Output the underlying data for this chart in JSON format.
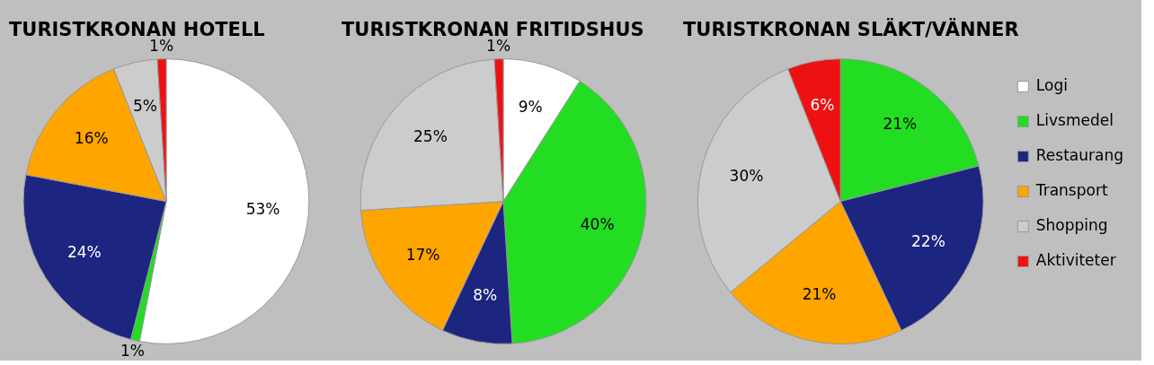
{
  "chart_data": [
    {
      "type": "pie",
      "title": "TURISTKRONAN HOTELL",
      "categories": [
        null,
        null,
        null,
        null,
        null,
        null
      ],
      "values": [
        53,
        1,
        24,
        16,
        5,
        1
      ],
      "colors": [
        "#ffffff",
        "#22dd22",
        "#1c2580",
        "#ffa500",
        "#cccccc",
        "#ee1111"
      ],
      "value_labels": [
        "53%",
        "1%",
        "24%",
        "16%",
        "5%",
        "1%"
      ],
      "legend": false
    },
    {
      "type": "pie",
      "title": "TURISTKRONAN FRITIDSHUS",
      "categories": [
        null,
        null,
        null,
        null,
        null,
        null
      ],
      "values": [
        9,
        40,
        8,
        17,
        25,
        1
      ],
      "colors": [
        "#ffffff",
        "#22dd22",
        "#1c2580",
        "#ffa500",
        "#cccccc",
        "#ee1111"
      ],
      "value_labels": [
        "9%",
        "40%",
        "8%",
        "17%",
        "25%",
        "1%"
      ],
      "legend": false
    },
    {
      "type": "pie",
      "title": "TURISTKRONAN SLÄKT/VÄNNER",
      "categories": [
        "Logi",
        "Livsmedel",
        "Restaurang",
        "Transport",
        "Shopping",
        "Aktiviteter"
      ],
      "values": [
        0,
        21,
        22,
        21,
        30,
        6
      ],
      "colors": [
        "#ffffff",
        "#22dd22",
        "#1c2580",
        "#ffa500",
        "#cccccc",
        "#ee1111"
      ],
      "value_labels": [
        null,
        "21%",
        "22%",
        "21%",
        "30%",
        "6%"
      ],
      "legend": "right"
    }
  ]
}
